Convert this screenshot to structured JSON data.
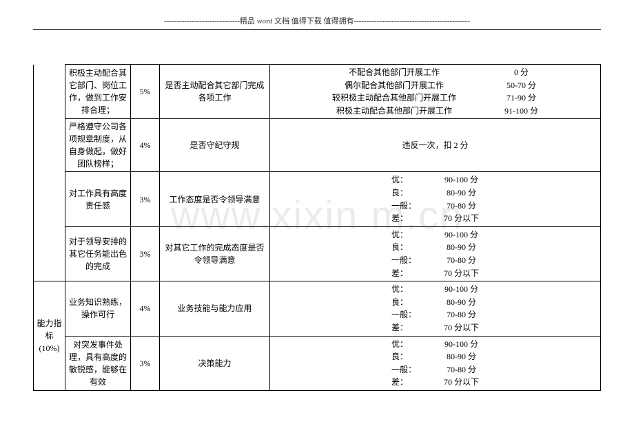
{
  "header": "------------------------------精品 word 文档  值得下载  值得拥有----------------------------------------------",
  "watermark": "www.xixin     m.cn",
  "rows": [
    {
      "desc": "积极主动配合其它部门、岗位工作，做到工作安排合理；",
      "weight": "5%",
      "criteria": "是否主动配合其它部门完成各项工作",
      "scoring_type": "wide",
      "scoring": [
        {
          "label": "不配合其他部门开展工作",
          "points": "0 分"
        },
        {
          "label": "偶尔配合其他部门开展工作",
          "points": "50-70 分"
        },
        {
          "label": "较积极主动配合其他部门开展工作",
          "points": "71-90 分"
        },
        {
          "label": "积极主动配合其他部门开展工作",
          "points": "91-100 分"
        }
      ]
    },
    {
      "desc": "严格遵守公司各项规章制度，从自身做起，做好团队榜样；",
      "weight": "4%",
      "criteria": "是否守纪守规",
      "scoring_type": "single",
      "single_text": "违反一次，扣 2 分"
    },
    {
      "desc": "对工作具有高度责任感",
      "weight": "3%",
      "criteria": "工作态度是否令领导满意",
      "scoring_type": "grid",
      "scoring": [
        {
          "label": "优：",
          "points": "90-100 分"
        },
        {
          "label": "良：",
          "points": "80-90 分"
        },
        {
          "label": "一般：",
          "points": "70-80 分"
        },
        {
          "label": "差：",
          "points": "70 分以下"
        }
      ]
    },
    {
      "desc": "对于领导安排的其它任务能出色的完成",
      "weight": "3%",
      "criteria": "对其它工作的完成态度是否令领导满意",
      "scoring_type": "grid",
      "scoring": [
        {
          "label": "优：",
          "points": "90-100 分"
        },
        {
          "label": "良：",
          "points": "80-90 分"
        },
        {
          "label": "一般：",
          "points": "70-80 分"
        },
        {
          "label": "差：",
          "points": "70 分以下"
        }
      ]
    },
    {
      "category": "能力指标(10%)",
      "desc": "业务知识熟练，操作可行",
      "weight": "4%",
      "criteria": "业务技能与能力应用",
      "scoring_type": "grid",
      "scoring": [
        {
          "label": "优：",
          "points": "90-100 分"
        },
        {
          "label": "良：",
          "points": "80-90 分"
        },
        {
          "label": "一般：",
          "points": "70-80 分"
        },
        {
          "label": "差：",
          "points": "70 分以下"
        }
      ]
    },
    {
      "desc": "对突发事件处理，具有高度的敏锐感，能够在有效",
      "weight": "3%",
      "criteria": "决策能力",
      "scoring_type": "grid",
      "scoring": [
        {
          "label": "优：",
          "points": "90-100 分"
        },
        {
          "label": "良：",
          "points": "80-90 分"
        },
        {
          "label": "一般：",
          "points": "70-80 分"
        },
        {
          "label": "差：",
          "points": "70 分以下"
        }
      ]
    }
  ]
}
